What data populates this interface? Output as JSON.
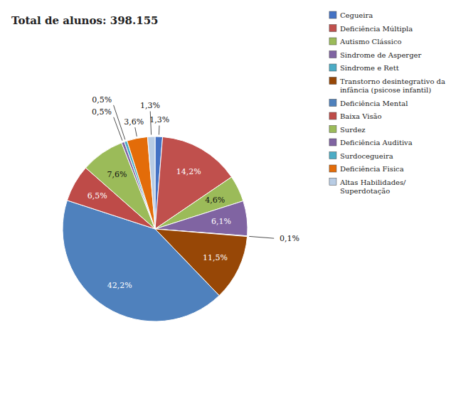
{
  "chart_data": {
    "type": "pie",
    "title": "Total de alunos: 398.155",
    "categories": [
      "Cegueira",
      "Deficiência Múltipla",
      "Autismo Clássico",
      "Sindrome de Asperger",
      "Sindrome e Rett",
      "Transtorno desintegrativo da\ninfância (psicose infantil)",
      "Deficiência Mental",
      "Baixa Visão",
      "Surdez",
      "Deficiência Auditiva",
      "Surdocegueira",
      "Deficiência Fisica",
      "Altas Habilidades/\nSuperdotação"
    ],
    "values": [
      1.3,
      14.2,
      4.6,
      6.1,
      0.1,
      11.5,
      42.2,
      6.5,
      7.6,
      0.5,
      0.5,
      3.6,
      1.3
    ],
    "value_labels": [
      "1,3%",
      "14,2%",
      "4,6%",
      "6,1%",
      "0,1%",
      "11,5%",
      "42,2%",
      "6,5%",
      "7,6%",
      "0,5%",
      "0,5%",
      "3,6%",
      "1,3%"
    ],
    "colors": [
      "#4472C4",
      "#C0504D",
      "#9BBB59",
      "#8064A2",
      "#4BACC6",
      "#974706",
      "#4F81BD",
      "#BE4B48",
      "#9BBB59",
      "#8064A2",
      "#4BACC6",
      "#E36C09",
      "#B8CCE4"
    ],
    "data_labels": true,
    "legend": "upper right"
  }
}
